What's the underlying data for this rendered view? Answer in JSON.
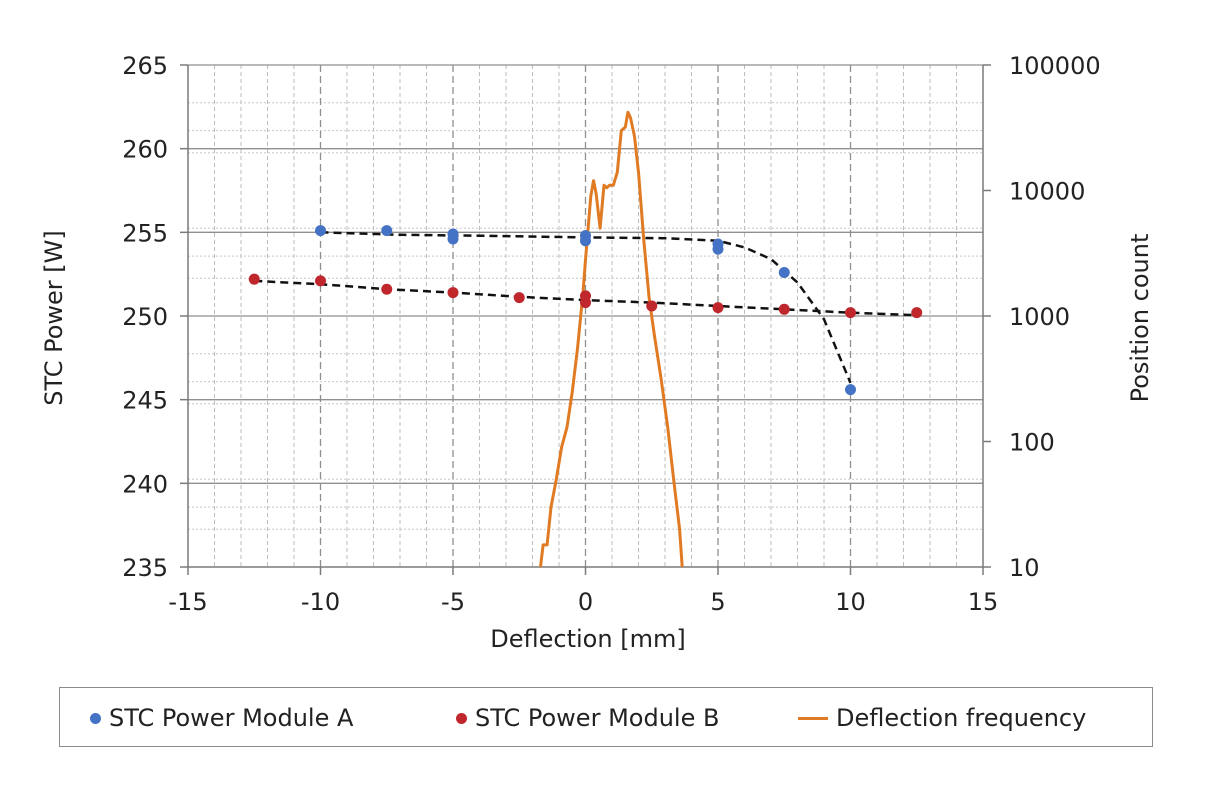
{
  "chart_data": {
    "type": "scatter",
    "xlabel": "Deflection [mm]",
    "ylabel": "STC Power [W]",
    "y2label": "Position count",
    "xlim": [
      -15,
      15
    ],
    "ylim": [
      235,
      265
    ],
    "y2lim": [
      10,
      100000
    ],
    "y2scale": "log",
    "xticks": [
      "-15",
      "-10",
      "-5",
      "0",
      "5",
      "10",
      "15"
    ],
    "yticks": [
      "235",
      "240",
      "245",
      "250",
      "255",
      "260",
      "265"
    ],
    "y2ticks": [
      "10",
      "100",
      "1000",
      "10000",
      "100000"
    ],
    "grid": true,
    "legend_position": "bottom",
    "series": [
      {
        "name": "STC Power Module A",
        "kind": "scatter",
        "color": "#4472c4",
        "points": [
          [
            -10,
            255.1
          ],
          [
            -7.5,
            255.1
          ],
          [
            -5,
            254.9
          ],
          [
            -5,
            254.6
          ],
          [
            0,
            254.8
          ],
          [
            0,
            254.5
          ],
          [
            5,
            254.3
          ],
          [
            5,
            254.0
          ],
          [
            7.5,
            252.6
          ],
          [
            10,
            245.6
          ]
        ],
        "trend": [
          [
            -10,
            255.0
          ],
          [
            -7,
            254.85
          ],
          [
            -4,
            254.8
          ],
          [
            0,
            254.7
          ],
          [
            3,
            254.65
          ],
          [
            5,
            254.5
          ],
          [
            6,
            254.1
          ],
          [
            7,
            253.4
          ],
          [
            8,
            252.0
          ],
          [
            9,
            249.8
          ],
          [
            10,
            246.0
          ]
        ]
      },
      {
        "name": "STC Power Module B",
        "kind": "scatter",
        "color": "#c0272d",
        "points": [
          [
            -12.5,
            252.2
          ],
          [
            -10,
            252.1
          ],
          [
            -7.5,
            251.6
          ],
          [
            -5,
            251.4
          ],
          [
            -2.5,
            251.1
          ],
          [
            0,
            251.2
          ],
          [
            0,
            250.8
          ],
          [
            2.5,
            250.6
          ],
          [
            5,
            250.5
          ],
          [
            7.5,
            250.4
          ],
          [
            10,
            250.2
          ],
          [
            12.5,
            250.2
          ]
        ],
        "trend": [
          [
            -12.5,
            252.1
          ],
          [
            -10,
            251.9
          ],
          [
            -7.5,
            251.6
          ],
          [
            -5,
            251.4
          ],
          [
            -2.5,
            251.15
          ],
          [
            0,
            250.95
          ],
          [
            2.5,
            250.8
          ],
          [
            5,
            250.6
          ],
          [
            7.5,
            250.4
          ],
          [
            10,
            250.2
          ],
          [
            12.5,
            250.05
          ]
        ]
      },
      {
        "name": "Deflection frequency",
        "kind": "line",
        "axis": "y2",
        "color": "#e07b24",
        "points": [
          [
            -1.7,
            10
          ],
          [
            -1.6,
            15
          ],
          [
            -1.45,
            15
          ],
          [
            -1.3,
            30
          ],
          [
            -1.1,
            50
          ],
          [
            -0.9,
            90
          ],
          [
            -0.7,
            130
          ],
          [
            -0.5,
            250
          ],
          [
            -0.3,
            550
          ],
          [
            -0.1,
            1500
          ],
          [
            0.0,
            2800
          ],
          [
            0.1,
            5000
          ],
          [
            0.2,
            9000
          ],
          [
            0.3,
            12000
          ],
          [
            0.4,
            9500
          ],
          [
            0.55,
            5000
          ],
          [
            0.7,
            11000
          ],
          [
            0.8,
            10500
          ],
          [
            0.9,
            11000
          ],
          [
            1.05,
            11000
          ],
          [
            1.2,
            14000
          ],
          [
            1.35,
            30000
          ],
          [
            1.5,
            32000
          ],
          [
            1.6,
            42000
          ],
          [
            1.7,
            38000
          ],
          [
            1.85,
            27000
          ],
          [
            2.0,
            14000
          ],
          [
            2.2,
            4000
          ],
          [
            2.4,
            1400
          ],
          [
            2.6,
            700
          ],
          [
            2.85,
            320
          ],
          [
            3.1,
            130
          ],
          [
            3.35,
            45
          ],
          [
            3.55,
            20
          ],
          [
            3.65,
            10
          ]
        ]
      }
    ]
  },
  "legend": {
    "items": [
      {
        "label": "STC Power Module A",
        "color": "#4472c4",
        "marker": "dot"
      },
      {
        "label": "STC Power Module B",
        "color": "#c0272d",
        "marker": "dot"
      },
      {
        "label": "Deflection frequency",
        "color": "#e07b24",
        "marker": "line"
      }
    ]
  }
}
